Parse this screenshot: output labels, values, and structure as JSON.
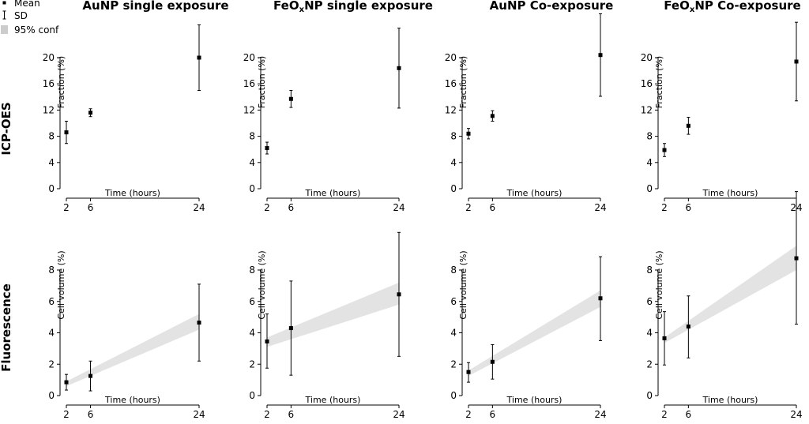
{
  "legend": {
    "mean": "Mean",
    "sd": "SD",
    "conf": "95% conf"
  },
  "rows": [
    "ICP-OES",
    "Fluorescence"
  ],
  "colors": {
    "band": "#e3e3e3",
    "legend_band": "#cccccc",
    "ink": "#000000"
  },
  "chart_data": [
    {
      "type": "scatter",
      "row": 0,
      "col": 0,
      "title": "AuNP single exposure",
      "title_base": "AuNP",
      "title_sub": "",
      "title_rest": " single exposure",
      "xlabel": "Time (hours)",
      "ylabel": "Fraction (%)",
      "x": [
        2,
        6,
        24
      ],
      "xticks": [
        2,
        6,
        24
      ],
      "xlim": [
        2,
        24
      ],
      "ylim": [
        0,
        20
      ],
      "yticks": [
        0,
        4,
        8,
        12,
        16,
        20
      ],
      "mean": [
        8.6,
        11.6,
        20.0
      ],
      "sd_low": [
        6.9,
        11.0,
        15.0
      ],
      "sd_high": [
        10.3,
        12.2,
        25.0
      ]
    },
    {
      "type": "scatter",
      "row": 0,
      "col": 1,
      "title": "FeOxNP single exposure",
      "title_base": "FeO",
      "title_sub": "x",
      "title_rest": "NP single exposure",
      "xlabel": "Time (hours)",
      "ylabel": "Fraction (%)",
      "x": [
        2,
        6,
        24
      ],
      "xticks": [
        2,
        6,
        24
      ],
      "xlim": [
        2,
        24
      ],
      "ylim": [
        0,
        20
      ],
      "yticks": [
        0,
        4,
        8,
        12,
        16,
        20
      ],
      "mean": [
        6.2,
        13.7,
        18.4
      ],
      "sd_low": [
        5.3,
        12.4,
        12.3
      ],
      "sd_high": [
        7.1,
        15.0,
        24.5
      ]
    },
    {
      "type": "scatter",
      "row": 0,
      "col": 2,
      "title": "AuNP Co-exposure",
      "title_base": "AuNP",
      "title_sub": "",
      "title_rest": " Co-exposure",
      "xlabel": "Time (hours)",
      "ylabel": "Fraction (%)",
      "x": [
        2,
        6,
        24
      ],
      "xticks": [
        2,
        6,
        24
      ],
      "xlim": [
        2,
        24
      ],
      "ylim": [
        0,
        20
      ],
      "yticks": [
        0,
        4,
        8,
        12,
        16,
        20
      ],
      "mean": [
        8.4,
        11.1,
        20.4
      ],
      "sd_low": [
        7.6,
        10.3,
        14.1
      ],
      "sd_high": [
        9.2,
        11.9,
        26.7
      ]
    },
    {
      "type": "scatter",
      "row": 0,
      "col": 3,
      "title": "FeOxNP Co-exposure",
      "title_base": "FeO",
      "title_sub": "x",
      "title_rest": "NP Co-exposure",
      "xlabel": "Time (hours)",
      "ylabel": "Fraction (%)",
      "x": [
        2,
        6,
        24
      ],
      "xticks": [
        2,
        6,
        24
      ],
      "xlim": [
        2,
        24
      ],
      "ylim": [
        0,
        20
      ],
      "yticks": [
        0,
        4,
        8,
        12,
        16,
        20
      ],
      "mean": [
        5.9,
        9.6,
        19.4
      ],
      "sd_low": [
        4.9,
        8.3,
        13.4
      ],
      "sd_high": [
        6.9,
        10.9,
        25.4
      ]
    },
    {
      "type": "scatter",
      "row": 1,
      "col": 0,
      "title": "",
      "xlabel": "Time (hours)",
      "ylabel": "Cell volume (%)",
      "x": [
        2,
        6,
        24
      ],
      "xticks": [
        2,
        6,
        24
      ],
      "xlim": [
        2,
        24
      ],
      "ylim": [
        0,
        8
      ],
      "yticks": [
        0,
        2,
        4,
        6,
        8
      ],
      "mean": [
        0.85,
        1.25,
        4.65
      ],
      "sd_low": [
        0.35,
        0.3,
        2.2
      ],
      "sd_high": [
        1.35,
        2.2,
        7.1
      ],
      "conf_band": {
        "x": [
          2,
          24
        ],
        "lower": [
          0.6,
          4.2
        ],
        "upper": [
          0.9,
          5.2
        ]
      }
    },
    {
      "type": "scatter",
      "row": 1,
      "col": 1,
      "title": "",
      "xlabel": "Time (hours)",
      "ylabel": "Cell volume (%)",
      "x": [
        2,
        6,
        24
      ],
      "xticks": [
        2,
        6,
        24
      ],
      "xlim": [
        2,
        24
      ],
      "ylim": [
        0,
        8
      ],
      "yticks": [
        0,
        2,
        4,
        6,
        8
      ],
      "mean": [
        3.45,
        4.3,
        6.45
      ],
      "sd_low": [
        1.75,
        1.3,
        2.5
      ],
      "sd_high": [
        5.2,
        7.3,
        10.4
      ],
      "conf_band": {
        "x": [
          2,
          24
        ],
        "lower": [
          3.1,
          5.8
        ],
        "upper": [
          3.7,
          7.2
        ]
      }
    },
    {
      "type": "scatter",
      "row": 1,
      "col": 2,
      "title": "",
      "xlabel": "Time (hours)",
      "ylabel": "Cell volume (%)",
      "x": [
        2,
        6,
        24
      ],
      "xticks": [
        2,
        6,
        24
      ],
      "xlim": [
        2,
        24
      ],
      "ylim": [
        0,
        8
      ],
      "yticks": [
        0,
        2,
        4,
        6,
        8
      ],
      "mean": [
        1.5,
        2.15,
        6.2
      ],
      "sd_low": [
        0.85,
        1.05,
        3.5
      ],
      "sd_high": [
        2.1,
        3.25,
        8.85
      ],
      "conf_band": {
        "x": [
          2,
          24
        ],
        "lower": [
          1.25,
          5.65
        ],
        "upper": [
          1.6,
          6.7
        ]
      }
    },
    {
      "type": "scatter",
      "row": 1,
      "col": 3,
      "title": "",
      "xlabel": "Time (hours)",
      "ylabel": "Cell volume (%)",
      "x": [
        2,
        6,
        24
      ],
      "xticks": [
        2,
        6,
        24
      ],
      "xlim": [
        2,
        24
      ],
      "ylim": [
        0,
        8
      ],
      "yticks": [
        0,
        2,
        4,
        6,
        8
      ],
      "mean": [
        3.65,
        4.4,
        8.75
      ],
      "sd_low": [
        1.95,
        2.4,
        4.55
      ],
      "sd_high": [
        5.35,
        6.35,
        13.0
      ],
      "conf_band": {
        "x": [
          2,
          24
        ],
        "lower": [
          3.35,
          8.0
        ],
        "upper": [
          3.7,
          9.55
        ]
      }
    }
  ]
}
